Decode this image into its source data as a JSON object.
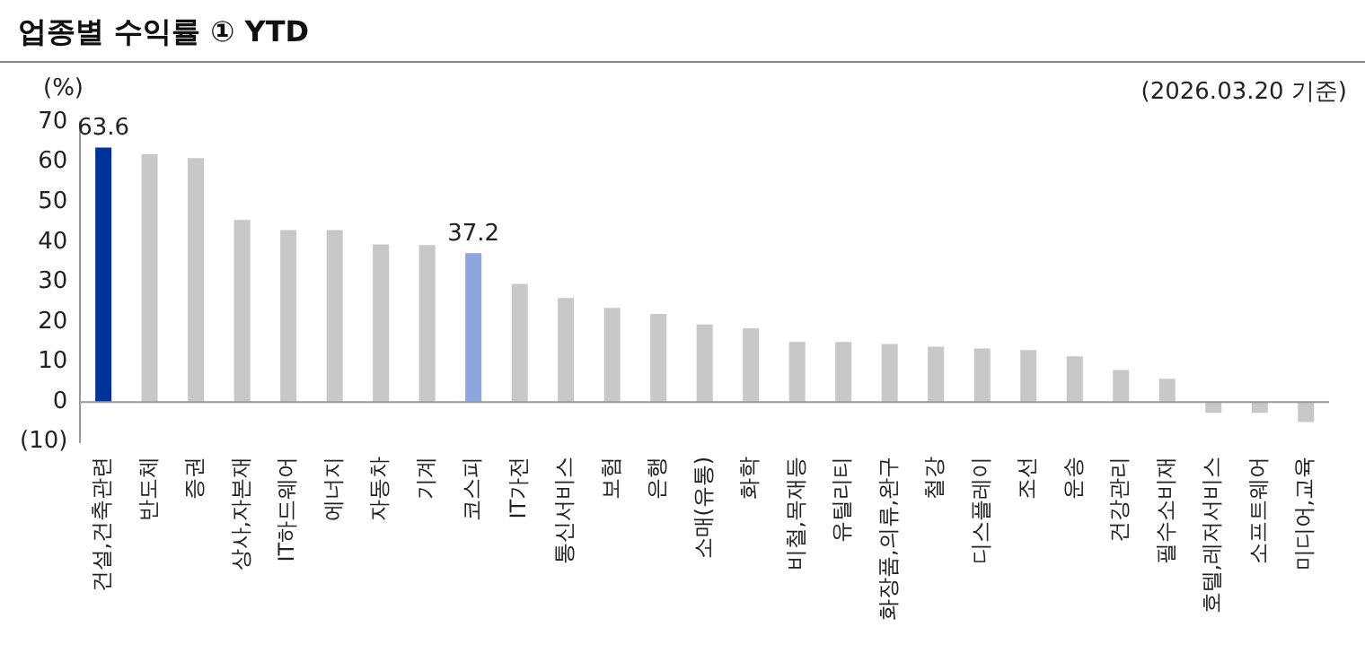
{
  "chart_data": {
    "type": "bar",
    "title": "업종별 수익률 ① YTD",
    "ylabel": "(%)",
    "annotations": [
      "(2026.03.20 기준)"
    ],
    "categories": [
      "건설,건축관련",
      "반도체",
      "증권",
      "상사,자본재",
      "IT하드웨어",
      "에너지",
      "자동차",
      "기계",
      "코스피",
      "IT가전",
      "통신서비스",
      "보험",
      "은행",
      "소매(유통)",
      "화학",
      "비철,목재등",
      "유틸리티",
      "화장품,의류,완구",
      "철강",
      "디스플레이",
      "조선",
      "운송",
      "건강관리",
      "필수소비재",
      "호텔,레저서비스",
      "소프트웨어",
      "미디어,교육"
    ],
    "values": [
      63.6,
      62,
      61,
      45.5,
      43,
      43,
      39.4,
      39.2,
      37.2,
      29.5,
      26,
      23.5,
      22,
      19.4,
      18.4,
      15,
      15,
      14.5,
      13.8,
      13.4,
      13,
      11.4,
      8,
      5.8,
      -2.7,
      -2.7,
      -5
    ],
    "value_labels": [
      "63.6",
      null,
      null,
      null,
      null,
      null,
      null,
      null,
      "37.2",
      null,
      null,
      null,
      null,
      null,
      null,
      null,
      null,
      null,
      null,
      null,
      null,
      null,
      null,
      null,
      null,
      null,
      null
    ],
    "colors": [
      "#003399",
      "#c8c8c8",
      "#c8c8c8",
      "#c8c8c8",
      "#c8c8c8",
      "#c8c8c8",
      "#c8c8c8",
      "#c8c8c8",
      "#8ea6dc",
      "#c8c8c8",
      "#c8c8c8",
      "#c8c8c8",
      "#c8c8c8",
      "#c8c8c8",
      "#c8c8c8",
      "#c8c8c8",
      "#c8c8c8",
      "#c8c8c8",
      "#c8c8c8",
      "#c8c8c8",
      "#c8c8c8",
      "#c8c8c8",
      "#c8c8c8",
      "#c8c8c8",
      "#c8c8c8",
      "#c8c8c8",
      "#c8c8c8"
    ],
    "ylim": [
      -10,
      70
    ],
    "yticks": [
      {
        "value": -10,
        "label": "(10)"
      },
      0,
      10,
      20,
      30,
      40,
      50,
      60,
      70
    ],
    "grid": false,
    "legend": false
  }
}
